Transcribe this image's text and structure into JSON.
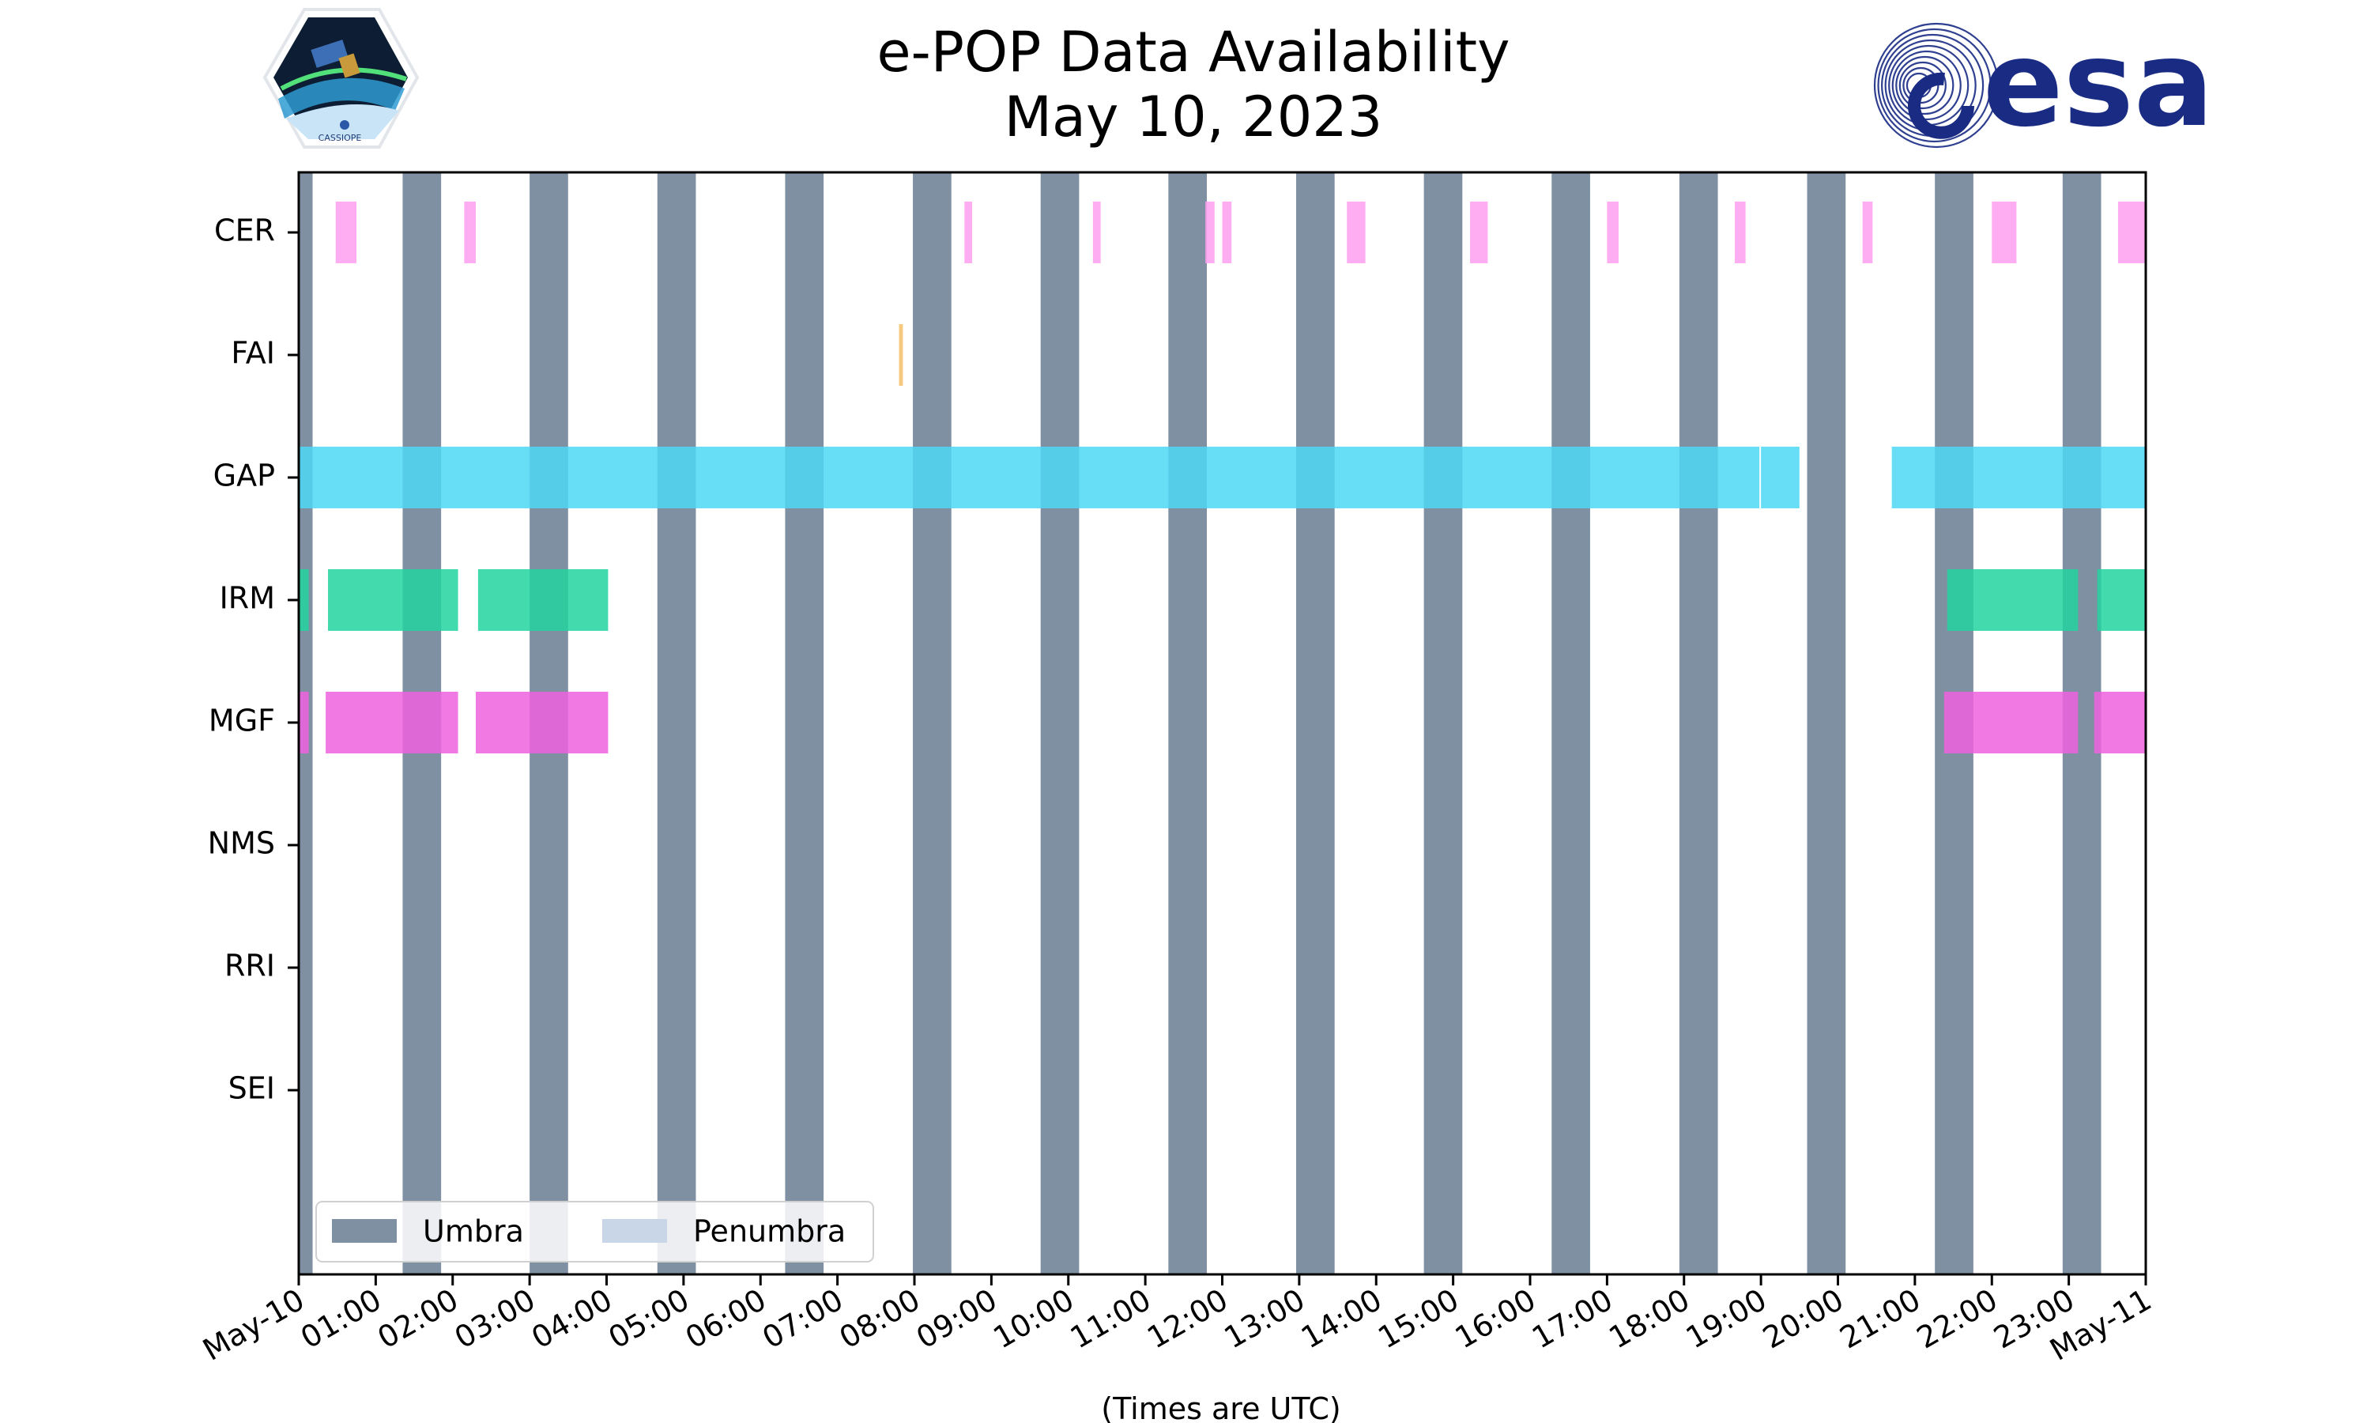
{
  "chart_data": {
    "type": "timeline",
    "title": [
      "e-POP Data Availability",
      "May 10, 2023"
    ],
    "xlabel": "(Times are UTC)",
    "xlim": [
      0,
      24
    ],
    "x_tick_values": [
      0,
      1,
      2,
      3,
      4,
      5,
      6,
      7,
      8,
      9,
      10,
      11,
      12,
      13,
      14,
      15,
      16,
      17,
      18,
      19,
      20,
      21,
      22,
      23,
      24
    ],
    "x_tick_labels": [
      "May-10",
      "01:00",
      "02:00",
      "03:00",
      "04:00",
      "05:00",
      "06:00",
      "07:00",
      "08:00",
      "09:00",
      "10:00",
      "11:00",
      "12:00",
      "13:00",
      "14:00",
      "15:00",
      "16:00",
      "17:00",
      "18:00",
      "19:00",
      "20:00",
      "21:00",
      "22:00",
      "23:00",
      "May-11"
    ],
    "instruments": [
      "CER",
      "FAI",
      "GAP",
      "IRM",
      "MGF",
      "NMS",
      "RRI",
      "SEI"
    ],
    "umbra": [
      [
        0,
        0.18
      ],
      [
        1.35,
        1.85
      ],
      [
        3.0,
        3.5
      ],
      [
        4.66,
        5.16
      ],
      [
        6.32,
        6.82
      ],
      [
        7.98,
        8.48
      ],
      [
        9.64,
        10.14
      ],
      [
        11.3,
        11.8
      ],
      [
        12.96,
        13.46
      ],
      [
        14.62,
        15.12
      ],
      [
        16.28,
        16.78
      ],
      [
        17.94,
        18.44
      ],
      [
        19.6,
        20.1
      ],
      [
        21.26,
        21.76
      ],
      [
        22.92,
        23.42
      ]
    ],
    "series": [
      {
        "name": "CER",
        "color": "#ff9ff0",
        "intervals": [
          [
            0.48,
            0.75
          ],
          [
            2.15,
            2.3
          ],
          [
            8.65,
            8.75
          ],
          [
            10.32,
            10.42
          ],
          [
            11.78,
            11.9
          ],
          [
            12.0,
            12.12
          ],
          [
            13.62,
            13.86
          ],
          [
            15.22,
            15.45
          ],
          [
            17.0,
            17.15
          ],
          [
            18.66,
            18.8
          ],
          [
            20.32,
            20.45
          ],
          [
            22.0,
            22.32
          ],
          [
            23.64,
            24.0
          ]
        ]
      },
      {
        "name": "FAI",
        "color": "#f5c069",
        "intervals": [
          [
            7.8,
            7.85
          ]
        ]
      },
      {
        "name": "GAP",
        "color": "#4dd8f5",
        "intervals": [
          [
            0,
            18.98
          ],
          [
            19.0,
            19.5
          ],
          [
            20.7,
            24.0
          ]
        ]
      },
      {
        "name": "IRM",
        "color": "#22d3a0",
        "intervals": [
          [
            0,
            0.13
          ],
          [
            0.38,
            2.07
          ],
          [
            2.33,
            4.02
          ],
          [
            21.42,
            23.12
          ],
          [
            23.37,
            24.0
          ]
        ]
      },
      {
        "name": "MGF",
        "color": "#ef62df",
        "intervals": [
          [
            0,
            0.13
          ],
          [
            0.35,
            2.07
          ],
          [
            2.3,
            4.02
          ],
          [
            21.38,
            23.12
          ],
          [
            23.33,
            24.0
          ]
        ]
      },
      {
        "name": "NMS",
        "color": "#9370db",
        "intervals": []
      },
      {
        "name": "RRI",
        "color": "#ff7f50",
        "intervals": []
      },
      {
        "name": "SEI",
        "color": "#6495ed",
        "intervals": []
      }
    ],
    "legend": {
      "placement": "lower-left",
      "entries": [
        {
          "label": "Umbra",
          "color": "#8090a3"
        },
        {
          "label": "Penumbra",
          "color": "#c9d6e8"
        }
      ]
    },
    "grid": false
  },
  "logos": {
    "esa_text": "esa",
    "cassiope_text": "CASSIOPE",
    "esa_color": "#1a2b84"
  }
}
